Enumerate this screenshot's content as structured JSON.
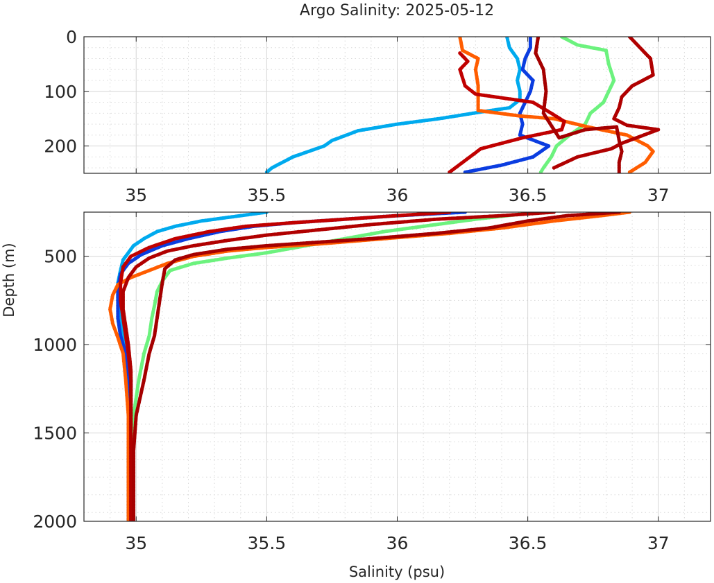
{
  "chart_data": [
    {
      "type": "scatter",
      "panel": "upper",
      "title": "Argo Salinity: 2025-05-12",
      "xlabel": "",
      "ylabel": "",
      "xlim": [
        34.8,
        37.2
      ],
      "ylim": [
        250,
        0
      ],
      "y_reversed": true,
      "grid": "major and minor",
      "xticks": [
        35,
        35.5,
        36,
        36.5,
        37
      ],
      "xtick_labels": [
        "35",
        "35.5",
        "36",
        "36.5",
        "37"
      ],
      "yticks": [
        0,
        100,
        200
      ],
      "ytick_labels": [
        "0",
        "100",
        "200"
      ],
      "series": [
        {
          "color": "#00aaee",
          "points": [
            [
              36.42,
              0
            ],
            [
              36.43,
              20
            ],
            [
              36.46,
              40
            ],
            [
              36.47,
              60
            ],
            [
              36.46,
              80
            ],
            [
              36.47,
              100
            ],
            [
              36.47,
              115
            ],
            [
              36.43,
              130
            ],
            [
              36.33,
              137
            ],
            [
              36.16,
              150
            ],
            [
              36.0,
              160
            ],
            [
              35.85,
              172
            ],
            [
              35.75,
              190
            ],
            [
              35.72,
              200
            ],
            [
              35.6,
              220
            ],
            [
              35.52,
              240
            ],
            [
              35.5,
              248
            ]
          ]
        },
        {
          "color": "#0b3de0",
          "points": [
            [
              36.51,
              0
            ],
            [
              36.51,
              20
            ],
            [
              36.49,
              40
            ],
            [
              36.48,
              60
            ],
            [
              36.52,
              80
            ],
            [
              36.51,
              100
            ],
            [
              36.49,
              120
            ],
            [
              36.47,
              140
            ],
            [
              36.48,
              160
            ],
            [
              36.47,
              180
            ],
            [
              36.58,
              200
            ],
            [
              36.52,
              220
            ],
            [
              36.4,
              235
            ],
            [
              36.26,
              248
            ]
          ]
        },
        {
          "color": "#6cf27e",
          "points": [
            [
              36.63,
              0
            ],
            [
              36.69,
              15
            ],
            [
              36.8,
              25
            ],
            [
              36.81,
              50
            ],
            [
              36.83,
              80
            ],
            [
              36.81,
              100
            ],
            [
              36.79,
              120
            ],
            [
              36.74,
              140
            ],
            [
              36.72,
              160
            ],
            [
              36.66,
              180
            ],
            [
              36.61,
              200
            ],
            [
              36.59,
              220
            ],
            [
              36.56,
              240
            ],
            [
              36.55,
              248
            ]
          ]
        },
        {
          "color": "#ff5d00",
          "points": [
            [
              36.24,
              0
            ],
            [
              36.25,
              25
            ],
            [
              36.31,
              40
            ],
            [
              36.3,
              60
            ],
            [
              36.31,
              90
            ],
            [
              36.31,
              110
            ],
            [
              36.31,
              135
            ],
            [
              36.47,
              145
            ],
            [
              36.6,
              150
            ],
            [
              36.73,
              165
            ],
            [
              36.88,
              180
            ],
            [
              36.96,
              200
            ],
            [
              36.98,
              210
            ],
            [
              36.95,
              230
            ],
            [
              36.89,
              248
            ]
          ]
        },
        {
          "color": "#c00000",
          "points": [
            [
              36.24,
              30
            ],
            [
              36.27,
              45
            ],
            [
              36.24,
              60
            ],
            [
              36.26,
              90
            ],
            [
              36.3,
              105
            ],
            [
              36.52,
              120
            ],
            [
              36.59,
              140
            ],
            [
              36.64,
              155
            ],
            [
              36.63,
              170
            ],
            [
              36.48,
              185
            ],
            [
              36.32,
              205
            ],
            [
              36.2,
              248
            ]
          ]
        },
        {
          "color": "#b00000",
          "points": [
            [
              36.89,
              0
            ],
            [
              36.93,
              20
            ],
            [
              36.97,
              40
            ],
            [
              36.98,
              70
            ],
            [
              36.9,
              90
            ],
            [
              36.86,
              110
            ],
            [
              36.85,
              130
            ],
            [
              36.83,
              150
            ],
            [
              36.88,
              162
            ],
            [
              37.0,
              170
            ],
            [
              36.86,
              195
            ],
            [
              36.82,
              205
            ],
            [
              36.69,
              220
            ],
            [
              36.6,
              240
            ]
          ]
        },
        {
          "color": "#a50000",
          "points": [
            [
              36.54,
              0
            ],
            [
              36.53,
              30
            ],
            [
              36.56,
              60
            ],
            [
              36.57,
              100
            ],
            [
              36.56,
              140
            ],
            [
              36.6,
              170
            ],
            [
              36.62,
              185
            ],
            [
              36.72,
              170
            ],
            [
              36.84,
              165
            ],
            [
              36.85,
              190
            ],
            [
              36.86,
              210
            ],
            [
              36.85,
              230
            ],
            [
              36.85,
              248
            ]
          ]
        }
      ]
    },
    {
      "type": "scatter",
      "panel": "lower",
      "title": "",
      "xlabel": "Salinity (psu)",
      "ylabel": "Depth (m)",
      "xlim": [
        34.8,
        37.2
      ],
      "ylim": [
        2000,
        250
      ],
      "y_reversed": true,
      "grid": "major and minor",
      "xticks": [
        35,
        35.5,
        36,
        36.5,
        37
      ],
      "xtick_labels": [
        "35",
        "35.5",
        "36",
        "36.5",
        "37"
      ],
      "yticks": [
        500,
        1000,
        1500,
        2000
      ],
      "ytick_labels": [
        "500",
        "1000",
        "1500",
        "2000"
      ],
      "series": [
        {
          "color": "#00aaee",
          "points": [
            [
              35.5,
              250
            ],
            [
              35.4,
              270
            ],
            [
              35.25,
              300
            ],
            [
              35.15,
              330
            ],
            [
              35.08,
              360
            ],
            [
              35.03,
              400
            ],
            [
              34.99,
              440
            ],
            [
              34.97,
              480
            ],
            [
              34.95,
              520
            ],
            [
              34.94,
              580
            ],
            [
              34.93,
              650
            ],
            [
              34.93,
              750
            ],
            [
              34.94,
              850
            ],
            [
              34.95,
              950
            ],
            [
              34.97,
              1050
            ],
            [
              34.98,
              1200
            ],
            [
              34.98,
              1400
            ],
            [
              34.97,
              1600
            ],
            [
              34.97,
              1800
            ],
            [
              34.97,
              2000
            ]
          ]
        },
        {
          "color": "#0b3de0",
          "points": [
            [
              36.26,
              250
            ],
            [
              36.0,
              270
            ],
            [
              35.8,
              290
            ],
            [
              35.6,
              310
            ],
            [
              35.45,
              330
            ],
            [
              35.32,
              360
            ],
            [
              35.2,
              400
            ],
            [
              35.1,
              440
            ],
            [
              35.02,
              490
            ],
            [
              34.97,
              540
            ],
            [
              34.94,
              600
            ],
            [
              34.93,
              680
            ],
            [
              34.93,
              760
            ],
            [
              34.93,
              850
            ],
            [
              34.94,
              950
            ],
            [
              34.96,
              1050
            ],
            [
              34.97,
              1200
            ],
            [
              34.98,
              1400
            ],
            [
              34.98,
              1600
            ],
            [
              34.98,
              1800
            ],
            [
              34.98,
              2000
            ]
          ]
        },
        {
          "color": "#6cf27e",
          "points": [
            [
              36.55,
              250
            ],
            [
              36.45,
              265
            ],
            [
              36.3,
              290
            ],
            [
              36.1,
              330
            ],
            [
              35.95,
              360
            ],
            [
              35.8,
              400
            ],
            [
              35.65,
              440
            ],
            [
              35.5,
              480
            ],
            [
              35.35,
              510
            ],
            [
              35.22,
              540
            ],
            [
              35.13,
              580
            ],
            [
              35.1,
              640
            ],
            [
              35.08,
              700
            ],
            [
              35.07,
              780
            ],
            [
              35.06,
              850
            ],
            [
              35.05,
              950
            ],
            [
              35.03,
              1050
            ],
            [
              35.01,
              1200
            ],
            [
              34.99,
              1400
            ],
            [
              34.98,
              1600
            ],
            [
              34.98,
              1800
            ],
            [
              34.98,
              2000
            ]
          ]
        },
        {
          "color": "#ff5d00",
          "points": [
            [
              36.89,
              250
            ],
            [
              36.78,
              270
            ],
            [
              36.6,
              300
            ],
            [
              36.4,
              340
            ],
            [
              36.2,
              370
            ],
            [
              35.95,
              400
            ],
            [
              35.7,
              430
            ],
            [
              35.5,
              450
            ],
            [
              35.35,
              470
            ],
            [
              35.22,
              500
            ],
            [
              35.12,
              540
            ],
            [
              35.05,
              580
            ],
            [
              34.98,
              620
            ],
            [
              34.93,
              660
            ],
            [
              34.91,
              720
            ],
            [
              34.9,
              800
            ],
            [
              34.91,
              880
            ],
            [
              34.93,
              960
            ],
            [
              34.95,
              1050
            ],
            [
              34.96,
              1200
            ],
            [
              34.97,
              1400
            ],
            [
              34.97,
              1600
            ],
            [
              34.97,
              1800
            ],
            [
              34.97,
              2000
            ]
          ]
        },
        {
          "color": "#c00000",
          "points": [
            [
              36.2,
              250
            ],
            [
              36.0,
              270
            ],
            [
              35.8,
              290
            ],
            [
              35.6,
              310
            ],
            [
              35.42,
              330
            ],
            [
              35.28,
              360
            ],
            [
              35.15,
              400
            ],
            [
              35.05,
              450
            ],
            [
              34.98,
              500
            ],
            [
              34.95,
              560
            ],
            [
              34.94,
              650
            ],
            [
              34.94,
              750
            ],
            [
              34.95,
              850
            ],
            [
              34.96,
              950
            ],
            [
              34.97,
              1050
            ],
            [
              34.98,
              1200
            ],
            [
              34.98,
              1400
            ],
            [
              34.98,
              1600
            ],
            [
              34.98,
              1800
            ],
            [
              34.98,
              2000
            ]
          ]
        },
        {
          "color": "#b00000",
          "points": [
            [
              36.6,
              250
            ],
            [
              36.4,
              270
            ],
            [
              36.15,
              290
            ],
            [
              35.9,
              320
            ],
            [
              35.7,
              350
            ],
            [
              35.5,
              380
            ],
            [
              35.35,
              410
            ],
            [
              35.22,
              440
            ],
            [
              35.12,
              470
            ],
            [
              35.05,
              510
            ],
            [
              35.0,
              560
            ],
            [
              34.97,
              620
            ],
            [
              34.95,
              700
            ],
            [
              34.95,
              800
            ],
            [
              34.96,
              900
            ],
            [
              34.97,
              1000
            ],
            [
              34.98,
              1150
            ],
            [
              34.98,
              1400
            ],
            [
              34.98,
              1600
            ],
            [
              34.98,
              1800
            ],
            [
              34.98,
              2000
            ]
          ]
        },
        {
          "color": "#a50000",
          "points": [
            [
              36.85,
              250
            ],
            [
              36.65,
              270
            ],
            [
              36.5,
              300
            ],
            [
              36.35,
              340
            ],
            [
              36.15,
              370
            ],
            [
              35.9,
              400
            ],
            [
              35.7,
              420
            ],
            [
              35.5,
              440
            ],
            [
              35.35,
              460
            ],
            [
              35.22,
              490
            ],
            [
              35.15,
              520
            ],
            [
              35.11,
              570
            ],
            [
              35.1,
              650
            ],
            [
              35.09,
              750
            ],
            [
              35.08,
              850
            ],
            [
              35.07,
              950
            ],
            [
              35.05,
              1050
            ],
            [
              35.03,
              1200
            ],
            [
              35.0,
              1400
            ],
            [
              34.99,
              1600
            ],
            [
              34.99,
              1800
            ],
            [
              34.99,
              2000
            ]
          ]
        }
      ]
    }
  ]
}
